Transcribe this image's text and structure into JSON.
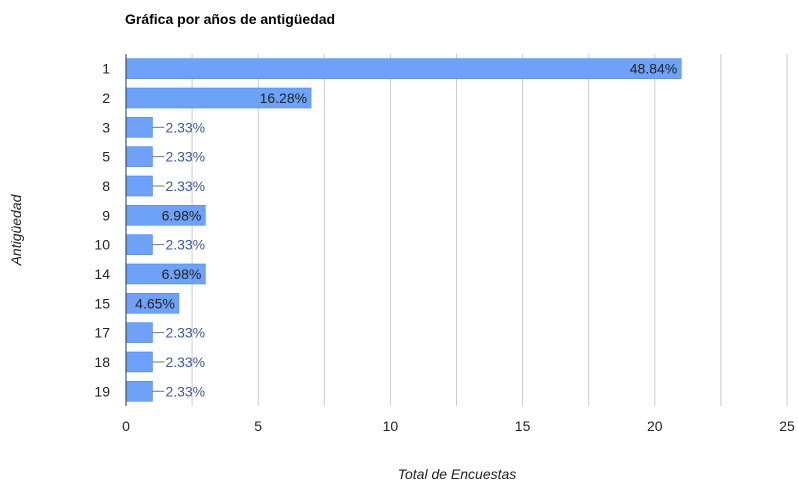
{
  "chart_data": {
    "type": "bar",
    "orientation": "horizontal",
    "title": "Gráfica por años de antigüedad",
    "xlabel": "Total de Encuestas",
    "ylabel": "Antigüedad",
    "categories": [
      "1",
      "2",
      "3",
      "5",
      "8",
      "9",
      "10",
      "14",
      "15",
      "17",
      "18",
      "19"
    ],
    "values": [
      21,
      7,
      1,
      1,
      1,
      3,
      1,
      3,
      2,
      1,
      1,
      1
    ],
    "data_labels": [
      "48.84%",
      "16.28%",
      "2.33%",
      "2.33%",
      "2.33%",
      "6.98%",
      "2.33%",
      "6.98%",
      "4.65%",
      "2.33%",
      "2.33%",
      "2.33%"
    ],
    "xlim": [
      0,
      25
    ],
    "xticks": [
      "0",
      "5",
      "10",
      "15",
      "20",
      "25"
    ],
    "grid": true,
    "colors": {
      "bar": "#6ea2f8",
      "bar_edge": "#4a86e8",
      "grid": "#cccccc",
      "axis": "#333333",
      "label_outside": "#3c5a9a"
    }
  }
}
